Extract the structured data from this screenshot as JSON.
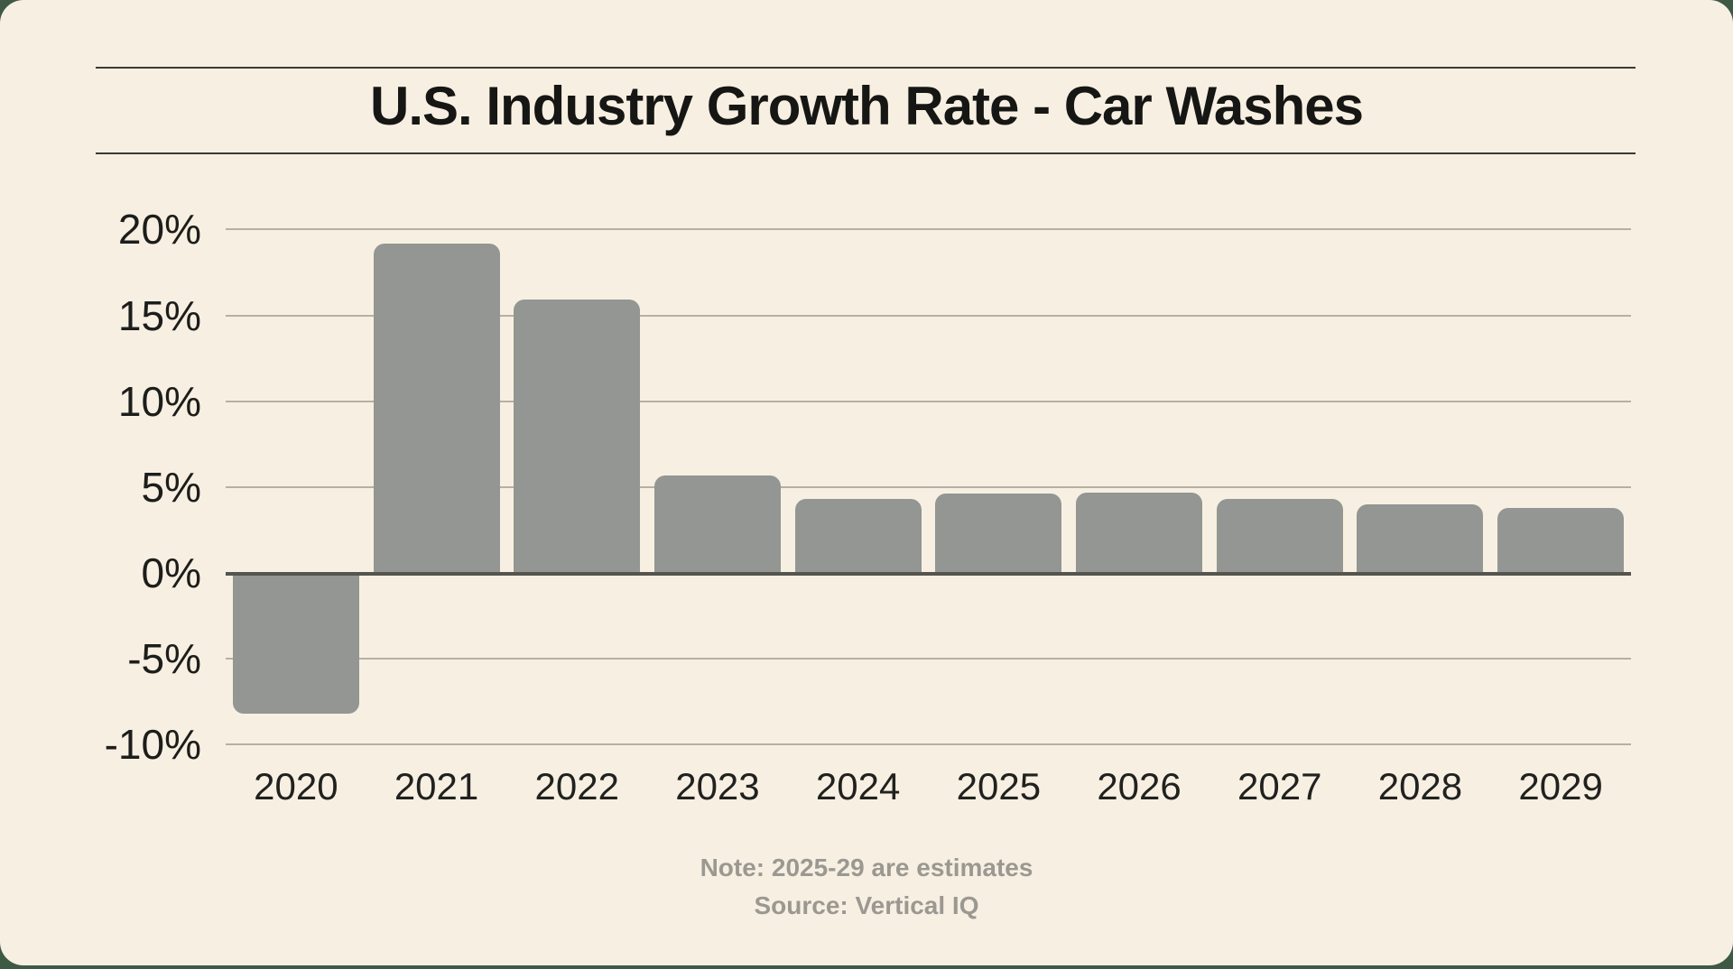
{
  "card": {
    "title": "U.S. Industry Growth Rate - Car Washes",
    "note": "Note: 2025-29 are estimates",
    "source": "Source: Vertical IQ"
  },
  "colors": {
    "page_background": "#3e5a45",
    "card_background": "#f7f0e2",
    "bar": "#939692",
    "gridline": "#b6b0a4",
    "zero_axis": "#55544e",
    "text": "#1d1d1b",
    "footnote_text": "#9b9892",
    "title_rule": "#3a3a35"
  },
  "chart_data": {
    "type": "bar",
    "title": "U.S. Industry Growth Rate - Car Washes",
    "categories": [
      "2020",
      "2021",
      "2022",
      "2023",
      "2024",
      "2025",
      "2026",
      "2027",
      "2028",
      "2029"
    ],
    "values": [
      -8.2,
      19.2,
      15.9,
      5.7,
      4.3,
      4.6,
      4.7,
      4.3,
      4.0,
      3.8
    ],
    "unit": "%",
    "xlabel": "",
    "ylabel": "",
    "ylim": [
      -10,
      20
    ],
    "yticks": [
      20,
      15,
      10,
      5,
      0,
      -5,
      -10
    ],
    "ytick_labels": [
      "20%",
      "15%",
      "10%",
      "5%",
      "0%",
      "-5%",
      "-10%"
    ],
    "grid": true,
    "legend": "none",
    "annotations": [
      "Note: 2025-29 are estimates",
      "Source: Vertical IQ"
    ]
  }
}
